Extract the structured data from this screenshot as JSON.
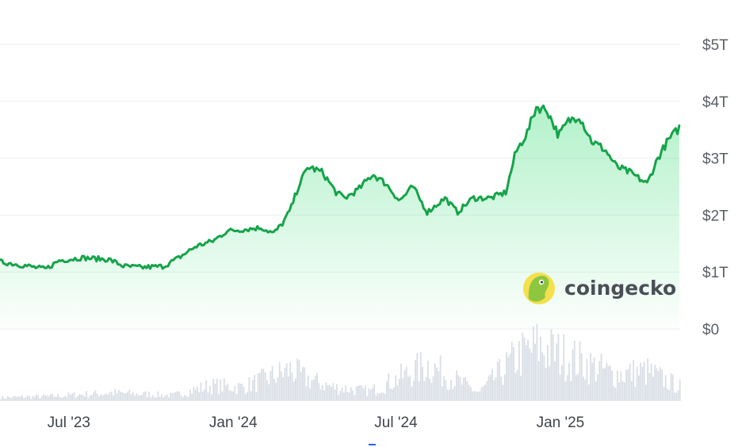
{
  "brand": {
    "name": "coingecko",
    "logo_icon": "coingecko-gecko-icon",
    "colors": {
      "logo_bg": "#f4e04d",
      "gecko": "#8dc63f"
    }
  },
  "colors": {
    "line": "#16a34a",
    "fill_top": "#4ade80",
    "volume": "#d9dee5",
    "grid": "#eceef1"
  },
  "chart_data": {
    "type": "area",
    "title": "",
    "xlabel": "",
    "ylabel": "",
    "x_range": [
      "2023-04-15",
      "2025-05-15"
    ],
    "ylim": [
      0,
      5
    ],
    "y_unit": "trillion USD",
    "y_ticks": [
      {
        "value": 0,
        "label": "$0"
      },
      {
        "value": 1,
        "label": "$1T"
      },
      {
        "value": 2,
        "label": "$2T"
      },
      {
        "value": 3,
        "label": "$3T"
      },
      {
        "value": 4,
        "label": "$4T"
      },
      {
        "value": 5,
        "label": "$5T"
      }
    ],
    "x_ticks": [
      {
        "date": "2023-07-01",
        "label": "Jul '23"
      },
      {
        "date": "2024-01-01",
        "label": "Jan '24"
      },
      {
        "date": "2024-07-01",
        "label": "Jul '24"
      },
      {
        "date": "2025-01-01",
        "label": "Jan '25"
      }
    ],
    "grid": true,
    "series": [
      {
        "values": [
          [
            "2023-04-15",
            1.18
          ],
          [
            "2023-05-10",
            1.12
          ],
          [
            "2023-06-05",
            1.05
          ],
          [
            "2023-06-20",
            1.2
          ],
          [
            "2023-07-15",
            1.25
          ],
          [
            "2023-08-15",
            1.22
          ],
          [
            "2023-09-01",
            1.1
          ],
          [
            "2023-09-20",
            1.08
          ],
          [
            "2023-10-15",
            1.1
          ],
          [
            "2023-11-01",
            1.25
          ],
          [
            "2023-11-20",
            1.45
          ],
          [
            "2023-12-10",
            1.55
          ],
          [
            "2023-12-25",
            1.72
          ],
          [
            "2024-01-15",
            1.75
          ],
          [
            "2024-02-01",
            1.78
          ],
          [
            "2024-02-15",
            1.68
          ],
          [
            "2024-02-25",
            1.85
          ],
          [
            "2024-03-05",
            2.1
          ],
          [
            "2024-03-15",
            2.55
          ],
          [
            "2024-03-25",
            2.85
          ],
          [
            "2024-04-10",
            2.75
          ],
          [
            "2024-04-25",
            2.4
          ],
          [
            "2024-05-05",
            2.3
          ],
          [
            "2024-05-20",
            2.45
          ],
          [
            "2024-06-05",
            2.72
          ],
          [
            "2024-06-20",
            2.55
          ],
          [
            "2024-07-05",
            2.25
          ],
          [
            "2024-07-20",
            2.5
          ],
          [
            "2024-08-05",
            2.05
          ],
          [
            "2024-08-25",
            2.3
          ],
          [
            "2024-09-08",
            2.05
          ],
          [
            "2024-09-25",
            2.3
          ],
          [
            "2024-10-15",
            2.3
          ],
          [
            "2024-11-01",
            2.4
          ],
          [
            "2024-11-12",
            3.1
          ],
          [
            "2024-11-25",
            3.45
          ],
          [
            "2024-12-05",
            3.9
          ],
          [
            "2024-12-17",
            3.85
          ],
          [
            "2024-12-30",
            3.4
          ],
          [
            "2025-01-10",
            3.65
          ],
          [
            "2025-01-22",
            3.75
          ],
          [
            "2025-02-05",
            3.3
          ],
          [
            "2025-02-20",
            3.15
          ],
          [
            "2025-03-05",
            2.85
          ],
          [
            "2025-03-20",
            2.75
          ],
          [
            "2025-04-08",
            2.55
          ],
          [
            "2025-04-20",
            3.0
          ],
          [
            "2025-05-01",
            3.3
          ],
          [
            "2025-05-15",
            3.55
          ]
        ]
      }
    ],
    "volume": {
      "ylim": [
        0,
        1
      ],
      "values": [
        [
          "2023-04-15",
          0.05
        ],
        [
          "2023-06-15",
          0.07
        ],
        [
          "2023-08-17",
          0.12
        ],
        [
          "2023-10-25",
          0.08
        ],
        [
          "2023-12-05",
          0.22
        ],
        [
          "2024-01-11",
          0.2
        ],
        [
          "2024-03-05",
          0.45
        ],
        [
          "2024-03-20",
          0.33
        ],
        [
          "2024-04-20",
          0.2
        ],
        [
          "2024-06-01",
          0.14
        ],
        [
          "2024-08-05",
          0.52
        ],
        [
          "2024-10-01",
          0.12
        ],
        [
          "2024-11-12",
          0.62
        ],
        [
          "2024-12-05",
          0.78
        ],
        [
          "2025-01-20",
          0.58
        ],
        [
          "2025-03-01",
          0.38
        ],
        [
          "2025-04-07",
          0.42
        ],
        [
          "2025-05-15",
          0.2
        ]
      ]
    }
  }
}
